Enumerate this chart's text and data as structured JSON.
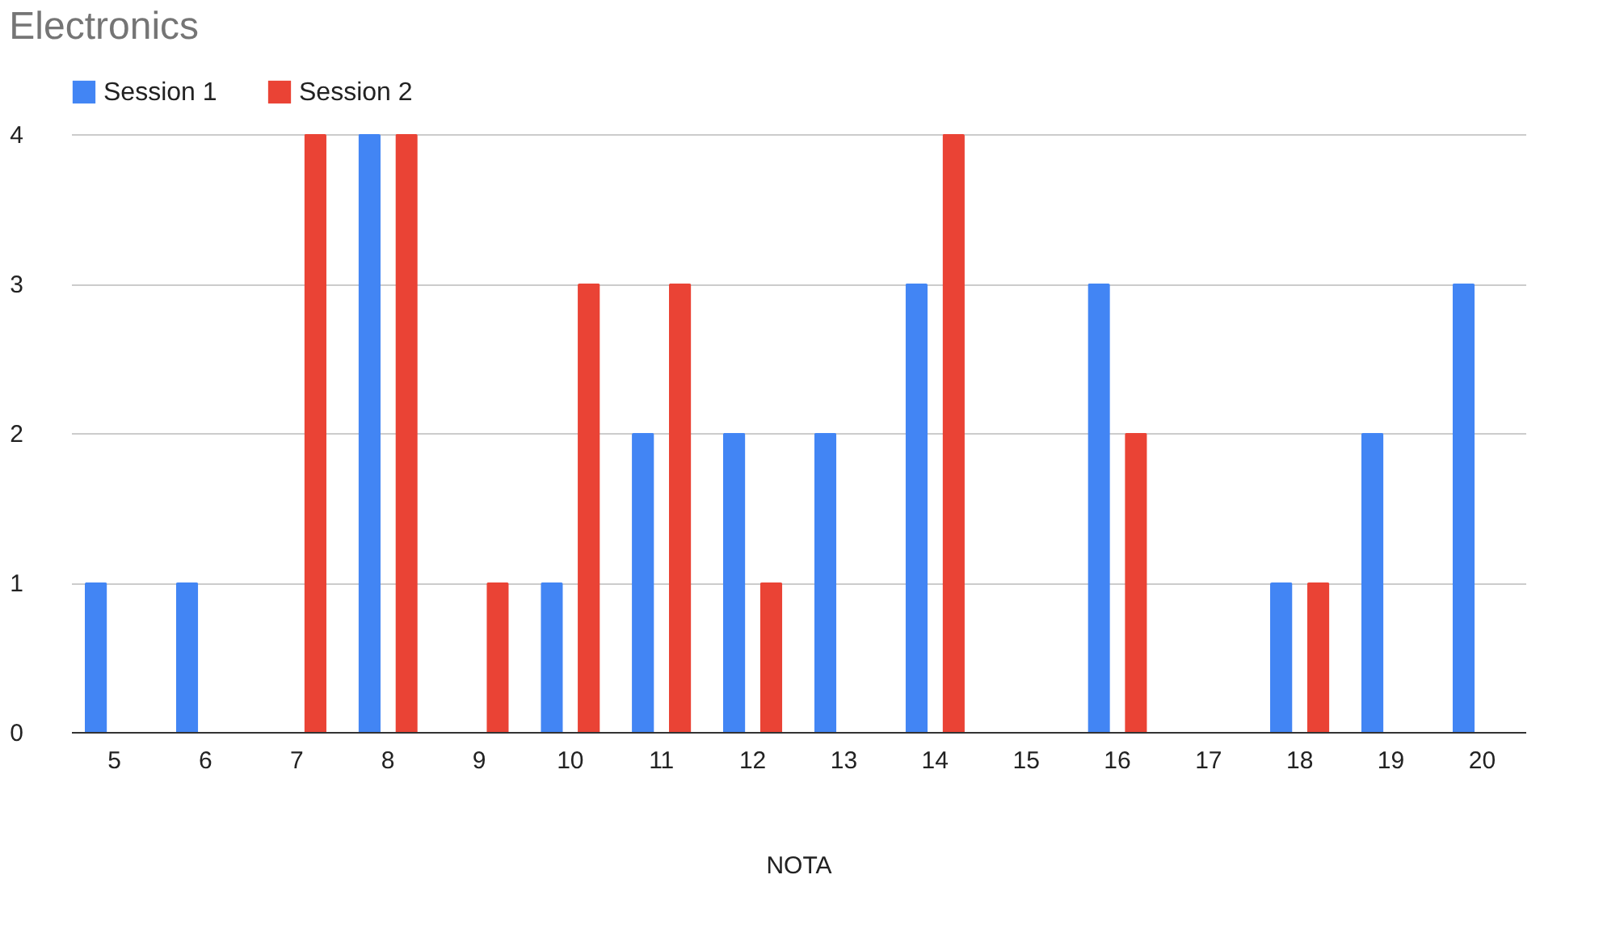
{
  "chart_data": {
    "type": "bar",
    "title": "Electronics",
    "xlabel": "NOTA",
    "categories": [
      "5",
      "6",
      "7",
      "8",
      "9",
      "10",
      "11",
      "12",
      "13",
      "14",
      "15",
      "16",
      "17",
      "18",
      "19",
      "20"
    ],
    "series": [
      {
        "name": "Session 1",
        "color": "#4285f4",
        "values": [
          1,
          1,
          0,
          4,
          0,
          1,
          2,
          2,
          2,
          3,
          0,
          3,
          0,
          1,
          2,
          3
        ]
      },
      {
        "name": "Session 2",
        "color": "#ea4335",
        "values": [
          0,
          0,
          4,
          4,
          1,
          3,
          3,
          1,
          0,
          4,
          0,
          2,
          0,
          1,
          0,
          0
        ]
      }
    ],
    "ylim": [
      0,
      4
    ],
    "yticks": [
      0,
      1,
      2,
      3,
      4
    ],
    "grid": "y",
    "legend": "top"
  }
}
